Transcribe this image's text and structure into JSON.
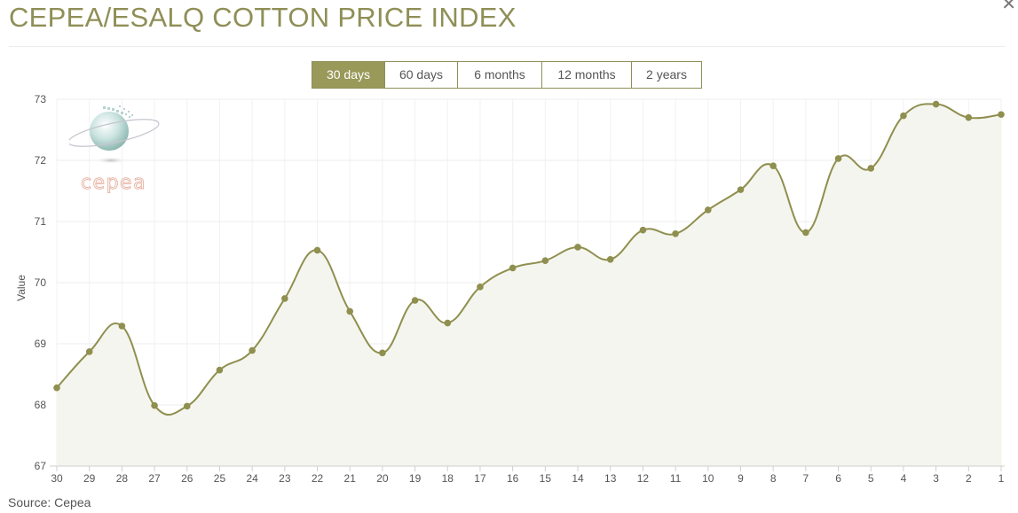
{
  "header": {
    "title": "CEPEA/ESALQ COTTON PRICE INDEX",
    "close_icon": "close-icon"
  },
  "range_tabs": [
    {
      "label": "30 days",
      "active": true
    },
    {
      "label": "60 days",
      "active": false
    },
    {
      "label": "6 months",
      "active": false
    },
    {
      "label": "12 months",
      "active": false
    },
    {
      "label": "2 years",
      "active": false
    }
  ],
  "logo": {
    "icon": "cepea-globe-logo",
    "text": "cepea"
  },
  "colors": {
    "accent": "#99995a",
    "line": "#8f8f4f",
    "area": "#f5f5ef",
    "grid": "#ececec"
  },
  "chart_data": {
    "type": "area",
    "ylabel": "Value",
    "ylim": [
      67,
      73
    ],
    "yticks": [
      67,
      68,
      69,
      70,
      71,
      72,
      73
    ],
    "grid": true,
    "x": [
      "30",
      "29",
      "28",
      "27",
      "26",
      "25",
      "24",
      "23",
      "22",
      "21",
      "20",
      "19",
      "18",
      "17",
      "16",
      "15",
      "14",
      "13",
      "12",
      "11",
      "10",
      "9",
      "8",
      "7",
      "6",
      "5",
      "4",
      "3",
      "2",
      "1"
    ],
    "series": [
      {
        "values": [
          68.28,
          68.87,
          69.29,
          67.99,
          67.98,
          68.57,
          68.89,
          69.74,
          70.53,
          69.53,
          68.85,
          69.71,
          69.34,
          69.93,
          70.24,
          70.36,
          70.58,
          70.38,
          70.86,
          70.8,
          71.19,
          71.52,
          71.91,
          70.82,
          72.03,
          71.87,
          72.73,
          72.92,
          72.7,
          72.75
        ]
      }
    ]
  },
  "footer": {
    "source": "Source: Cepea"
  }
}
